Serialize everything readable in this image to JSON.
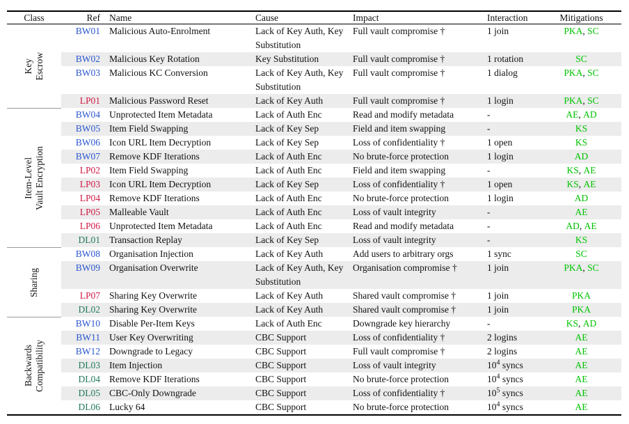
{
  "palette": {
    "bw_blue": "#2a57cf",
    "lp_red": "#d11a47",
    "dl_green": "#22795b",
    "mitigation_green": "#00c200",
    "row_shade": "#ececec",
    "rule_black": "#000000",
    "group_rule_gray": "#999999"
  },
  "header": {
    "columns": [
      "Class",
      "Ref",
      "Name",
      "Cause",
      "Impact",
      "Interaction",
      "Mitigations"
    ]
  },
  "groups": [
    {
      "class_label": [
        "Key",
        "Escrow"
      ],
      "rows": [
        {
          "ref": "BW01",
          "name": "Malicious Auto-Enrolment",
          "cause": "Lack of Key Auth, Key Substitution",
          "impact": "Full vault compromise †",
          "interaction": "1 join",
          "mitigations": [
            "PKA",
            "SC"
          ],
          "two_line": true
        },
        {
          "ref": "BW02",
          "name": "Malicious Key Rotation",
          "cause": "Key Substitution",
          "impact": "Full vault compromise †",
          "interaction": "1 rotation",
          "mitigations": [
            "SC"
          ],
          "two_line": false
        },
        {
          "ref": "BW03",
          "name": "Malicious KC Conversion",
          "cause": "Lack of Key Auth, Key Substitution",
          "impact": "Full vault compromise †",
          "interaction": "1 dialog",
          "mitigations": [
            "PKA",
            "SC"
          ],
          "two_line": true
        },
        {
          "ref": "LP01",
          "name": "Malicious Password Reset",
          "cause": "Lack of Key Auth",
          "impact": "Full vault compromise †",
          "interaction": "1 login",
          "mitigations": [
            "PKA",
            "SC"
          ],
          "two_line": false
        }
      ]
    },
    {
      "class_label": [
        "Item-Level",
        "Vault Encryption"
      ],
      "rows": [
        {
          "ref": "BW04",
          "name": "Unprotected Item Metadata",
          "cause": "Lack of Auth Enc",
          "impact": "Read and modify metadata",
          "interaction": "-",
          "mitigations": [
            "AE",
            "AD"
          ],
          "two_line": false
        },
        {
          "ref": "BW05",
          "name": "Item Field Swapping",
          "cause": "Lack of Key Sep",
          "impact": "Field and item swapping",
          "interaction": "-",
          "mitigations": [
            "KS"
          ],
          "two_line": false
        },
        {
          "ref": "BW06",
          "name": "Icon URL Item Decryption",
          "cause": "Lack of Key Sep",
          "impact": "Loss of confidentiality †",
          "interaction": "1 open",
          "mitigations": [
            "KS"
          ],
          "two_line": false
        },
        {
          "ref": "BW07",
          "name": "Remove KDF Iterations",
          "cause": "Lack of Auth Enc",
          "impact": "No brute-force protection",
          "interaction": "1 login",
          "mitigations": [
            "AD"
          ],
          "two_line": false
        },
        {
          "ref": "LP02",
          "name": "Item Field Swapping",
          "cause": "Lack of Auth Enc",
          "impact": "Field and item swapping",
          "interaction": "-",
          "mitigations": [
            "KS",
            "AE"
          ],
          "two_line": false
        },
        {
          "ref": "LP03",
          "name": "Icon URL Item Decryption",
          "cause": "Lack of Key Sep",
          "impact": "Loss of confidentiality †",
          "interaction": "1 open",
          "mitigations": [
            "KS",
            "AE"
          ],
          "two_line": false
        },
        {
          "ref": "LP04",
          "name": "Remove KDF Iterations",
          "cause": "Lack of Auth Enc",
          "impact": "No brute-force protection",
          "interaction": "1 login",
          "mitigations": [
            "AD"
          ],
          "two_line": false
        },
        {
          "ref": "LP05",
          "name": "Malleable Vault",
          "cause": "Lack of Auth Enc",
          "impact": "Loss of vault integrity",
          "interaction": "-",
          "mitigations": [
            "AE"
          ],
          "two_line": false
        },
        {
          "ref": "LP06",
          "name": "Unprotected Item Metadata",
          "cause": "Lack of Auth Enc",
          "impact": "Read and modify metadata",
          "interaction": "-",
          "mitigations": [
            "AD",
            "AE"
          ],
          "two_line": false
        },
        {
          "ref": "DL01",
          "name": "Transaction Replay",
          "cause": "Lack of Key Sep",
          "impact": "Loss of vault integrity",
          "interaction": "-",
          "mitigations": [
            "KS"
          ],
          "two_line": false
        }
      ]
    },
    {
      "class_label": [
        "Sharing"
      ],
      "rows": [
        {
          "ref": "BW08",
          "name": "Organisation Injection",
          "cause": "Lack of Key Auth",
          "impact": "Add users to arbitrary orgs",
          "interaction": "1 sync",
          "mitigations": [
            "SC"
          ],
          "two_line": false
        },
        {
          "ref": "BW09",
          "name": "Organisation Overwrite",
          "cause": "Lack of Key Auth, Key Substitution",
          "impact": "Organisation compromise †",
          "interaction": "1 join",
          "mitigations": [
            "PKA",
            "SC"
          ],
          "two_line": true
        },
        {
          "ref": "LP07",
          "name": "Sharing Key Overwrite",
          "cause": "Lack of Key Auth",
          "impact": "Shared vault compromise †",
          "interaction": "1 join",
          "mitigations": [
            "PKA"
          ],
          "two_line": false
        },
        {
          "ref": "DL02",
          "name": "Sharing Key Overwrite",
          "cause": "Lack of Key Auth",
          "impact": "Shared vault compromise †",
          "interaction": "1 join",
          "mitigations": [
            "PKA"
          ],
          "two_line": false
        }
      ]
    },
    {
      "class_label": [
        "Backwards",
        "Compatibility"
      ],
      "rows": [
        {
          "ref": "BW10",
          "name": "Disable Per-Item Keys",
          "cause": "Lack of Auth Enc",
          "impact": "Downgrade key hierarchy",
          "interaction": "-",
          "mitigations": [
            "KS",
            "AD"
          ],
          "two_line": false
        },
        {
          "ref": "BW11",
          "name": "User Key Overwriting",
          "cause": "CBC Support",
          "impact": "Loss of confidentiality †",
          "interaction": "2 logins",
          "mitigations": [
            "AE"
          ],
          "two_line": false
        },
        {
          "ref": "BW12",
          "name": "Downgrade to Legacy",
          "cause": "CBC Support",
          "impact": "Full vault compromise †",
          "interaction": "2 logins",
          "mitigations": [
            "AE"
          ],
          "two_line": false
        },
        {
          "ref": "DL03",
          "name": "Item Injection",
          "cause": "CBC Support",
          "impact": "Loss of vault integrity",
          "interaction": "10^4 syncs",
          "mitigations": [
            "AE"
          ],
          "two_line": false
        },
        {
          "ref": "DL04",
          "name": "Remove KDF Iterations",
          "cause": "CBC Support",
          "impact": "No brute-force protection",
          "interaction": "10^4 syncs",
          "mitigations": [
            "AE"
          ],
          "two_line": false
        },
        {
          "ref": "DL05",
          "name": "CBC-Only Downgrade",
          "cause": "CBC Support",
          "impact": "Loss of confidentiality †",
          "interaction": "10^5 syncs",
          "mitigations": [
            "AE"
          ],
          "two_line": false
        },
        {
          "ref": "DL06",
          "name": "Lucky 64",
          "cause": "CBC Support",
          "impact": "No brute-force protection",
          "interaction": "10^4 syncs",
          "mitigations": [
            "AE"
          ],
          "two_line": false
        }
      ]
    }
  ]
}
